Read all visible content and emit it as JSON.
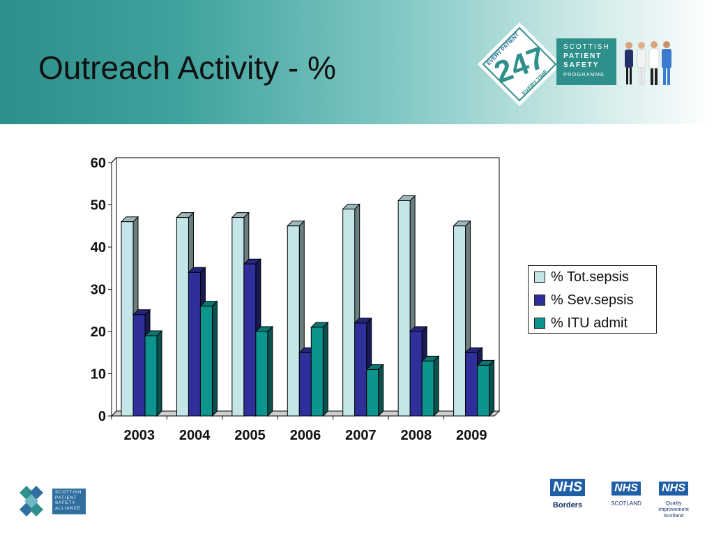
{
  "header": {
    "title": "Outreach Activity - %",
    "logo_247": {
      "top": "EVERY PATIENT",
      "bottom": "EVERY TIME",
      "number": "247"
    },
    "spsp": {
      "line1": "SCOTTISH",
      "line2": "PATIENT",
      "line3": "SAFETY",
      "line4": "PROGRAMME"
    }
  },
  "footer": {
    "spsa": {
      "line1": "SCOTTISH",
      "line2": "PATIENT",
      "line3": "SAFETY",
      "line4": "ALLIANCE"
    },
    "nhs_borders": {
      "badge": "NHS",
      "name": "Borders"
    },
    "nhs_scotland": {
      "badge": "NHS",
      "name": "SCOTLAND"
    },
    "nhs_qis": {
      "badge": "NHS",
      "name_line1": "Quality",
      "name_line2": "Improvement",
      "name_line3": "Scotland"
    }
  },
  "chart_data": {
    "type": "bar",
    "style": "3d-clustered",
    "categories": [
      "2003",
      "2004",
      "2005",
      "2006",
      "2007",
      "2008",
      "2009"
    ],
    "series": [
      {
        "name": "% Tot.sepsis",
        "color": "#c5e6e8",
        "values": [
          46,
          47,
          47,
          45,
          49,
          51,
          45
        ]
      },
      {
        "name": "% Sev.sepsis",
        "color": "#2e2f9a",
        "values": [
          24,
          34,
          36,
          15,
          22,
          20,
          15
        ]
      },
      {
        "name": "% ITU admit",
        "color": "#0e948e",
        "values": [
          19,
          26,
          20,
          21,
          11,
          13,
          12
        ]
      }
    ],
    "ylim": [
      0,
      60
    ],
    "yticks": [
      0,
      10,
      20,
      30,
      40,
      50,
      60
    ],
    "grid": true,
    "legend_position": "right"
  }
}
